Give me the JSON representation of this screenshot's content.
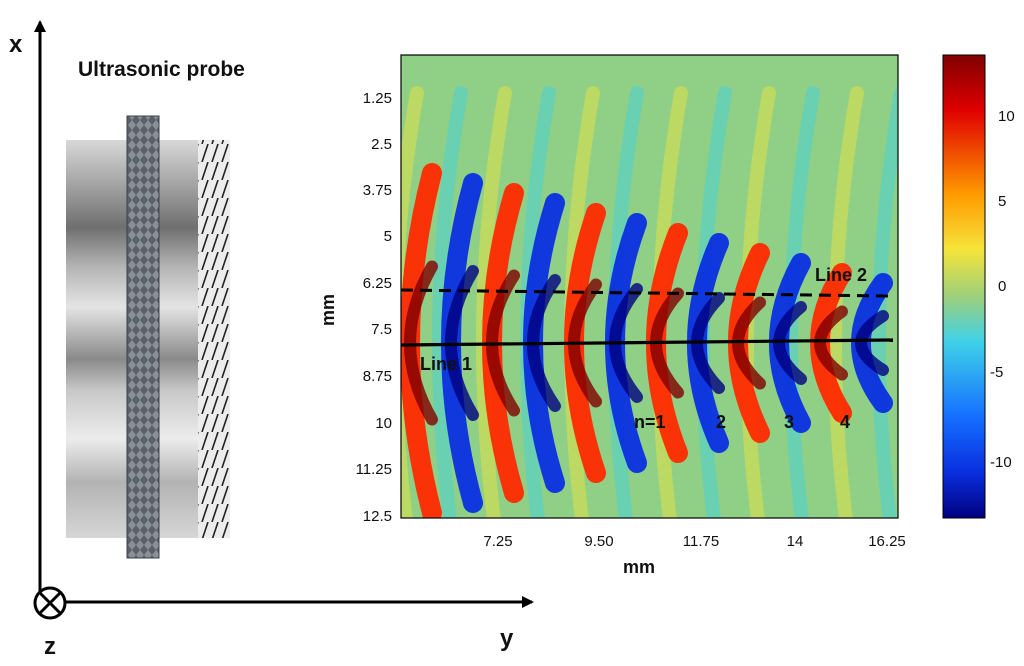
{
  "axes": {
    "x_label": "x",
    "y_label": "y",
    "z_label": "z"
  },
  "probe": {
    "title": "Ultrasonic probe"
  },
  "map": {
    "xlabel": "mm",
    "ylabel": "mm",
    "x_ticks": [
      "7.25",
      "9.50",
      "11.75",
      "14",
      "16.25"
    ],
    "y_ticks": [
      "1.25",
      "2.5",
      "3.75",
      "5",
      "6.25",
      "7.5",
      "8.75",
      "10",
      "11.25",
      "12.5"
    ],
    "line1_label": "Line 1",
    "line2_label": "Line 2",
    "n_labels": [
      "n=1",
      "2",
      "3",
      "4"
    ],
    "colorbar_ticks": [
      "10",
      "5",
      "0",
      "-5",
      "-10"
    ]
  },
  "colors": {
    "dark_red": "#7f0000",
    "red": "#ff2a00",
    "yellow": "#f5e43a",
    "green": "#9ed07a",
    "cyan": "#3fd1e8",
    "blue": "#0a2fe0",
    "dark_blue": "#00007f"
  }
}
